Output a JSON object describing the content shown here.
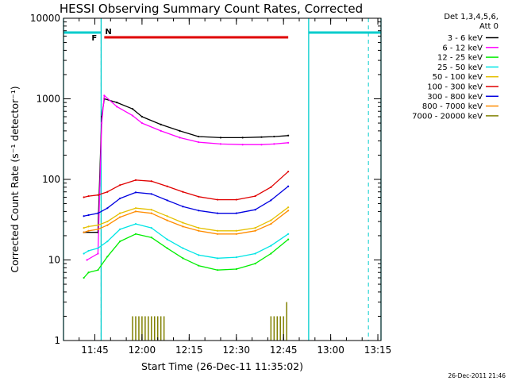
{
  "chart_data": {
    "type": "line",
    "title": "HESSI Observing Summary Count Rates, Corrected",
    "xlabel": "Start Time (26-Dec-11 11:35:02)",
    "ylabel": "Corrected Count Rate (s⁻¹ detector⁻¹)",
    "y_scale": "log",
    "ylim": [
      1,
      10000
    ],
    "xlim": [
      "11:35:02",
      "13:16:00"
    ],
    "x_ticks": [
      "11:45",
      "12:00",
      "12:15",
      "12:30",
      "12:45",
      "13:00",
      "13:15"
    ],
    "y_ticks": [
      "1",
      "10",
      "100",
      "1000",
      "10000"
    ],
    "legend": {
      "position": "right-outside",
      "header": [
        "Det 1,3,4,5,6,",
        "Att 0"
      ],
      "entries": [
        {
          "label": "3 - 6 keV",
          "color": "#000000"
        },
        {
          "label": "6 - 12 keV",
          "color": "#ff00ff"
        },
        {
          "label": "12 - 25 keV",
          "color": "#00ee00"
        },
        {
          "label": "25 - 50 keV",
          "color": "#00e5e5"
        },
        {
          "label": "50 - 100 keV",
          "color": "#e5c000"
        },
        {
          "label": "100 - 300 keV",
          "color": "#e00000"
        },
        {
          "label": "300 - 800 keV",
          "color": "#0000e0"
        },
        {
          "label": "800 - 7000 keV",
          "color": "#ff8c00"
        },
        {
          "label": "7000 - 20000 keV",
          "color": "#808000"
        }
      ]
    },
    "flags": {
      "F": {
        "label": "F",
        "color": "#e00000",
        "start": "11:48:00",
        "end": "12:46:30",
        "value": 5800
      },
      "N": {
        "label": "N",
        "color": "#00cccc"
      },
      "night_intervals": [
        {
          "start": "11:35:02",
          "end": "11:47:00"
        },
        {
          "start": "12:53:00",
          "end": "13:16:00"
        }
      ],
      "saa_lines": [
        "11:47:00",
        "13:12:00"
      ]
    },
    "data_range": {
      "start": "11:41:30",
      "end": "12:46:30"
    },
    "series": [
      {
        "name": "3 - 6 keV",
        "color": "#000000",
        "x": [
          "11:41:30",
          "11:46:00",
          "11:47:10",
          "11:48:00",
          "11:52:00",
          "11:57:00",
          "12:00:00",
          "12:06:00",
          "12:12:00",
          "12:18:00",
          "12:25:00",
          "12:32:00",
          "12:38:00",
          "12:42:00",
          "12:46:30"
        ],
        "y": [
          22,
          22,
          600,
          1000,
          900,
          750,
          600,
          480,
          400,
          340,
          330,
          330,
          335,
          340,
          350
        ]
      },
      {
        "name": "6 - 12 keV",
        "color": "#ff00ff",
        "x": [
          "11:42:30",
          "11:46:00",
          "11:47:10",
          "11:48:00",
          "11:52:00",
          "11:57:00",
          "12:00:00",
          "12:06:00",
          "12:12:00",
          "12:18:00",
          "12:25:00",
          "12:32:00",
          "12:38:00",
          "12:42:00",
          "12:46:30"
        ],
        "y": [
          10,
          12,
          500,
          1100,
          800,
          620,
          500,
          400,
          330,
          290,
          275,
          270,
          270,
          275,
          285
        ]
      },
      {
        "name": "12 - 25 keV",
        "color": "#00ee00",
        "x": [
          "11:41:30",
          "11:43:00",
          "11:46:00",
          "11:49:00",
          "11:53:00",
          "11:58:00",
          "12:03:00",
          "12:08:00",
          "12:13:00",
          "12:18:00",
          "12:24:00",
          "12:30:00",
          "12:36:00",
          "12:41:00",
          "12:46:30"
        ],
        "y": [
          6,
          7,
          7.5,
          11,
          17,
          21,
          19,
          14,
          10.5,
          8.5,
          7.5,
          7.7,
          9,
          12,
          18
        ]
      },
      {
        "name": "25 - 50 keV",
        "color": "#00e5e5",
        "x": [
          "11:41:30",
          "11:43:00",
          "11:46:00",
          "11:49:00",
          "11:53:00",
          "11:58:00",
          "12:03:00",
          "12:08:00",
          "12:13:00",
          "12:18:00",
          "12:24:00",
          "12:30:00",
          "12:36:00",
          "12:41:00",
          "12:46:30"
        ],
        "y": [
          12,
          13,
          14,
          17,
          24,
          28,
          25,
          18,
          14,
          11.5,
          10.5,
          10.8,
          12,
          15,
          21
        ]
      },
      {
        "name": "50 - 100 keV",
        "color": "#e5c000",
        "x": [
          "11:41:30",
          "11:43:00",
          "11:46:00",
          "11:49:00",
          "11:53:00",
          "11:58:00",
          "12:03:00",
          "12:08:00",
          "12:13:00",
          "12:18:00",
          "12:24:00",
          "12:30:00",
          "12:36:00",
          "12:41:00",
          "12:46:30"
        ],
        "y": [
          25,
          26,
          27,
          30,
          38,
          44,
          42,
          35,
          29,
          25,
          23,
          23,
          25,
          31,
          45
        ]
      },
      {
        "name": "100 - 300 keV",
        "color": "#e00000",
        "x": [
          "11:41:30",
          "11:43:00",
          "11:46:00",
          "11:49:00",
          "11:53:00",
          "11:58:00",
          "12:03:00",
          "12:08:00",
          "12:13:00",
          "12:18:00",
          "12:24:00",
          "12:30:00",
          "12:36:00",
          "12:41:00",
          "12:46:30"
        ],
        "y": [
          60,
          62,
          64,
          70,
          85,
          98,
          95,
          82,
          70,
          61,
          56,
          56,
          62,
          80,
          125
        ]
      },
      {
        "name": "300 - 800 keV",
        "color": "#0000e0",
        "x": [
          "11:41:30",
          "11:43:00",
          "11:46:00",
          "11:49:00",
          "11:53:00",
          "11:58:00",
          "12:03:00",
          "12:08:00",
          "12:13:00",
          "12:18:00",
          "12:24:00",
          "12:30:00",
          "12:36:00",
          "12:41:00",
          "12:46:30"
        ],
        "y": [
          35,
          36,
          38,
          44,
          58,
          69,
          66,
          55,
          46,
          41,
          38,
          38,
          42,
          55,
          82
        ]
      },
      {
        "name": "800 - 7000 keV",
        "color": "#ff8c00",
        "x": [
          "11:41:30",
          "11:43:00",
          "11:46:00",
          "11:49:00",
          "11:53:00",
          "11:58:00",
          "12:03:00",
          "12:08:00",
          "12:13:00",
          "12:18:00",
          "12:24:00",
          "12:30:00",
          "12:36:00",
          "12:41:00",
          "12:46:30"
        ],
        "y": [
          22,
          23,
          24,
          27,
          34,
          40,
          38,
          31,
          26,
          23,
          21,
          21,
          23,
          28,
          41
        ]
      },
      {
        "name": "7000 - 20000 keV",
        "color": "#808000",
        "style": "spikes",
        "x": [
          "11:57:00",
          "11:58:00",
          "11:59:00",
          "12:00:00",
          "12:01:00",
          "12:02:00",
          "12:03:00",
          "12:04:00",
          "12:05:00",
          "12:06:00",
          "12:07:00",
          "12:41:00",
          "12:42:00",
          "12:43:00",
          "12:44:00",
          "12:45:00",
          "12:46:00"
        ],
        "y": [
          2,
          2,
          2,
          2,
          2,
          2,
          2,
          2,
          2,
          2,
          2,
          2,
          2,
          2,
          2,
          2,
          3
        ]
      }
    ]
  },
  "timestamp": "26-Dec-2011 21:46"
}
